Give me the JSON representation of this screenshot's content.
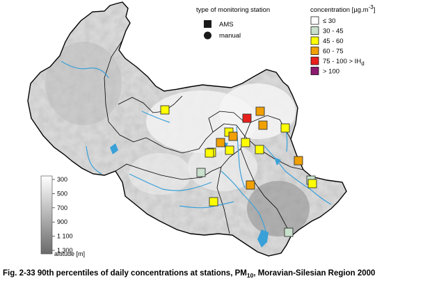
{
  "station_legend": {
    "title": "type of monitoring station",
    "items": [
      {
        "label": "AMS",
        "symbol": "square-icon"
      },
      {
        "label": "manual",
        "symbol": "circle-icon"
      }
    ]
  },
  "concentration_legend": {
    "title": "concentration [µg.m",
    "title_sup": "-3",
    "title_end": "]",
    "classes": [
      {
        "label": "≤ 30",
        "color": "#ffffff"
      },
      {
        "label": "30 - 45",
        "color": "#c8e0cc"
      },
      {
        "label": "45 - 60",
        "color": "#ffff00"
      },
      {
        "label": "60 - 75",
        "color": "#f0a000"
      },
      {
        "label": "75 - 100 > IH",
        "label_sub": "d",
        "color": "#e8201c"
      },
      {
        "label": "> 100",
        "color": "#8c1a6e"
      }
    ]
  },
  "altitude_legend": {
    "ticks": [
      "300",
      "500",
      "700",
      "900",
      "1 100",
      "1 300"
    ],
    "unit_label": "altitude [m]"
  },
  "caption": {
    "prefix": "Fig. 2-33  90th percentiles of daily concentrations at stations, PM",
    "sub": "10",
    "suffix": ", Moravian-Silesian Region 2000"
  },
  "stations": [
    {
      "type": "AMS",
      "color": "#ffff00"
    },
    {
      "type": "AMS",
      "color": "#f0a000"
    },
    {
      "type": "AMS",
      "color": "#e8201c"
    },
    {
      "type": "AMS",
      "color": "#f0a000"
    },
    {
      "type": "AMS",
      "color": "#ffff00"
    },
    {
      "type": "AMS",
      "color": "#ffff00"
    },
    {
      "type": "AMS",
      "color": "#f0a000"
    },
    {
      "type": "AMS",
      "color": "#f0a000"
    },
    {
      "type": "AMS",
      "color": "#ffff00"
    },
    {
      "type": "AMS",
      "color": "#ffff00"
    },
    {
      "type": "AMS",
      "color": "#ffff00"
    },
    {
      "type": "AMS",
      "color": "#ffff00"
    },
    {
      "type": "AMS",
      "color": "#ffff00"
    },
    {
      "type": "AMS",
      "color": "#f0a000"
    },
    {
      "type": "AMS",
      "color": "#c8e0cc"
    },
    {
      "type": "AMS",
      "color": "#f0a000"
    },
    {
      "type": "AMS",
      "color": "#c8e0cc"
    },
    {
      "type": "AMS",
      "color": "#ffff00"
    },
    {
      "type": "AMS",
      "color": "#ffff00"
    },
    {
      "type": "AMS",
      "color": "#c8e0cc"
    }
  ]
}
